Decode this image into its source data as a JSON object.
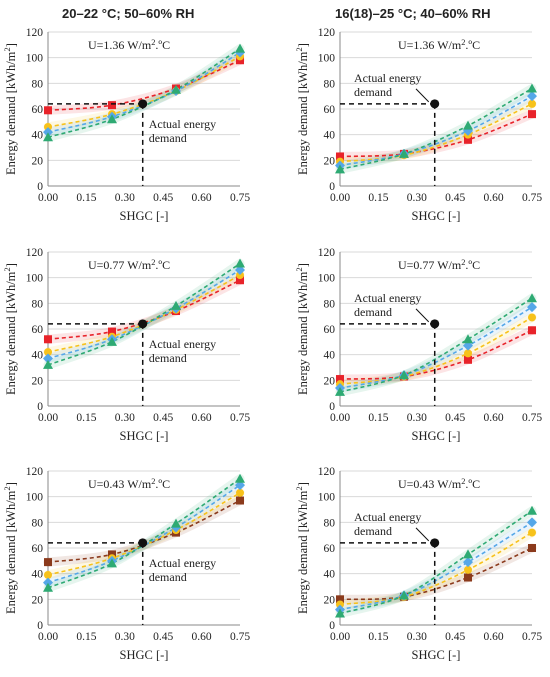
{
  "column_titles": [
    "20–22 °C; 50–60% RH",
    "16(18)–25 °C; 40–60% RH"
  ],
  "colors": {
    "red": "#e8232a",
    "brown": "#8b3a1c",
    "yellow": "#f7c21b",
    "blue": "#55a7e8",
    "green": "#2eaa73"
  },
  "chart_data": [
    {
      "type": "line",
      "row": 0,
      "col": 0,
      "annotation_u": "U=1.36 W/m².ºC",
      "annotation_text": [
        "Actual energy",
        "demand"
      ],
      "actual_point": {
        "x": 0.37,
        "y": 64
      },
      "xlabel": "SHGC [-]",
      "ylabel": "Energy demand [kWh/m²]",
      "xlim": [
        0,
        0.75
      ],
      "ylim": [
        0,
        120
      ],
      "x_ticks": [
        "0.00",
        "0.15",
        "0.30",
        "0.45",
        "0.60",
        "0.75"
      ],
      "y_ticks": [
        "0",
        "20",
        "40",
        "60",
        "80",
        "100",
        "120"
      ],
      "x": [
        0,
        0.25,
        0.5,
        0.75
      ],
      "series": [
        {
          "color": "red",
          "marker": "square",
          "values": [
            59,
            63,
            76,
            98
          ]
        },
        {
          "color": "yellow",
          "marker": "circle",
          "values": [
            46,
            56,
            74,
            101
          ]
        },
        {
          "color": "blue",
          "marker": "diamond",
          "values": [
            42,
            54,
            74,
            104
          ]
        },
        {
          "color": "green",
          "marker": "triangle",
          "values": [
            38,
            52,
            75,
            107
          ]
        }
      ]
    },
    {
      "type": "line",
      "row": 0,
      "col": 1,
      "annotation_u": "U=1.36 W/m².ºC",
      "annotation_text": [
        "Actual energy",
        "demand"
      ],
      "actual_point": {
        "x": 0.37,
        "y": 64
      },
      "xlabel": "SHGC [-]",
      "ylabel": "Energy demand [kWh/m²]",
      "xlim": [
        0,
        0.75
      ],
      "ylim": [
        0,
        120
      ],
      "x_ticks": [
        "0.00",
        "0.15",
        "0.30",
        "0.45",
        "0.60",
        "0.75"
      ],
      "y_ticks": [
        "0",
        "20",
        "40",
        "60",
        "80",
        "100",
        "120"
      ],
      "x": [
        0,
        0.25,
        0.5,
        0.75
      ],
      "series": [
        {
          "color": "red",
          "marker": "square",
          "values": [
            23,
            25,
            36,
            56
          ]
        },
        {
          "color": "yellow",
          "marker": "circle",
          "values": [
            19,
            24,
            40,
            64
          ]
        },
        {
          "color": "blue",
          "marker": "diamond",
          "values": [
            16,
            25,
            43,
            70
          ]
        },
        {
          "color": "green",
          "marker": "triangle",
          "values": [
            13,
            25,
            47,
            76
          ]
        }
      ]
    },
    {
      "type": "line",
      "row": 1,
      "col": 0,
      "annotation_u": "U=0.77 W/m².ºC",
      "annotation_text": [
        "Actual energy",
        "demand"
      ],
      "actual_point": {
        "x": 0.37,
        "y": 64
      },
      "xlabel": "SHGC [-]",
      "ylabel": "Energy demand [kWh/m²]",
      "xlim": [
        0,
        0.75
      ],
      "ylim": [
        0,
        120
      ],
      "x_ticks": [
        "0.00",
        "0.15",
        "0.30",
        "0.45",
        "0.60",
        "0.75"
      ],
      "y_ticks": [
        "0",
        "20",
        "40",
        "60",
        "80",
        "100",
        "120"
      ],
      "x": [
        0,
        0.25,
        0.5,
        0.75
      ],
      "series": [
        {
          "color": "red",
          "marker": "square",
          "values": [
            52,
            58,
            74,
            98
          ]
        },
        {
          "color": "yellow",
          "marker": "circle",
          "values": [
            42,
            54,
            75,
            102
          ]
        },
        {
          "color": "blue",
          "marker": "diamond",
          "values": [
            37,
            52,
            76,
            106
          ]
        },
        {
          "color": "green",
          "marker": "triangle",
          "values": [
            32,
            50,
            78,
            111
          ]
        }
      ]
    },
    {
      "type": "line",
      "row": 1,
      "col": 1,
      "annotation_u": "U=0.77 W/m².ºC",
      "annotation_text": [
        "Actual energy",
        "demand"
      ],
      "actual_point": {
        "x": 0.37,
        "y": 64
      },
      "xlabel": "SHGC [-]",
      "ylabel": "Energy demand [kWh/m²]",
      "xlim": [
        0,
        0.75
      ],
      "ylim": [
        0,
        120
      ],
      "x_ticks": [
        "0.00",
        "0.15",
        "0.30",
        "0.45",
        "0.60",
        "0.75"
      ],
      "y_ticks": [
        "0",
        "20",
        "40",
        "60",
        "80",
        "100",
        "120"
      ],
      "x": [
        0,
        0.25,
        0.5,
        0.75
      ],
      "series": [
        {
          "color": "red",
          "marker": "square",
          "values": [
            21,
            23,
            36,
            59
          ]
        },
        {
          "color": "yellow",
          "marker": "circle",
          "values": [
            17,
            23,
            41,
            69
          ]
        },
        {
          "color": "blue",
          "marker": "diamond",
          "values": [
            14,
            24,
            47,
            77
          ]
        },
        {
          "color": "green",
          "marker": "triangle",
          "values": [
            11,
            24,
            52,
            84
          ]
        }
      ]
    },
    {
      "type": "line",
      "row": 2,
      "col": 0,
      "annotation_u": "U=0.43 W/m².ºC",
      "annotation_text": [
        "Actual energy",
        "demand"
      ],
      "actual_point": {
        "x": 0.37,
        "y": 64
      },
      "xlabel": "SHGC [-]",
      "ylabel": "Energy demand [kWh/m²]",
      "xlim": [
        0,
        0.75
      ],
      "ylim": [
        0,
        120
      ],
      "x_ticks": [
        "0.00",
        "0.15",
        "0.30",
        "0.45",
        "0.60",
        "0.75"
      ],
      "y_ticks": [
        "0",
        "20",
        "40",
        "60",
        "80",
        "100",
        "120"
      ],
      "x": [
        0,
        0.25,
        0.5,
        0.75
      ],
      "series": [
        {
          "color": "brown",
          "marker": "square",
          "values": [
            49,
            55,
            72,
            97
          ]
        },
        {
          "color": "yellow",
          "marker": "circle",
          "values": [
            39,
            52,
            74,
            103
          ]
        },
        {
          "color": "blue",
          "marker": "diamond",
          "values": [
            33,
            50,
            76,
            109
          ]
        },
        {
          "color": "green",
          "marker": "triangle",
          "values": [
            29,
            48,
            79,
            114
          ]
        }
      ]
    },
    {
      "type": "line",
      "row": 2,
      "col": 1,
      "annotation_u": "U=0.43 W/m².ºC",
      "annotation_text": [
        "Actual energy",
        "demand"
      ],
      "actual_point": {
        "x": 0.37,
        "y": 64
      },
      "xlabel": "SHGC [-]",
      "ylabel": "Energy demand [kWh/m²]",
      "xlim": [
        0,
        0.75
      ],
      "ylim": [
        0,
        120
      ],
      "x_ticks": [
        "0.00",
        "0.15",
        "0.30",
        "0.45",
        "0.60",
        "0.75"
      ],
      "y_ticks": [
        "0",
        "20",
        "40",
        "60",
        "80",
        "100",
        "120"
      ],
      "x": [
        0,
        0.25,
        0.5,
        0.75
      ],
      "series": [
        {
          "color": "brown",
          "marker": "square",
          "values": [
            20,
            22,
            37,
            60
          ]
        },
        {
          "color": "yellow",
          "marker": "circle",
          "values": [
            16,
            22,
            43,
            72
          ]
        },
        {
          "color": "blue",
          "marker": "diamond",
          "values": [
            12,
            23,
            49,
            80
          ]
        },
        {
          "color": "green",
          "marker": "triangle",
          "values": [
            9,
            23,
            55,
            89
          ]
        }
      ]
    }
  ]
}
